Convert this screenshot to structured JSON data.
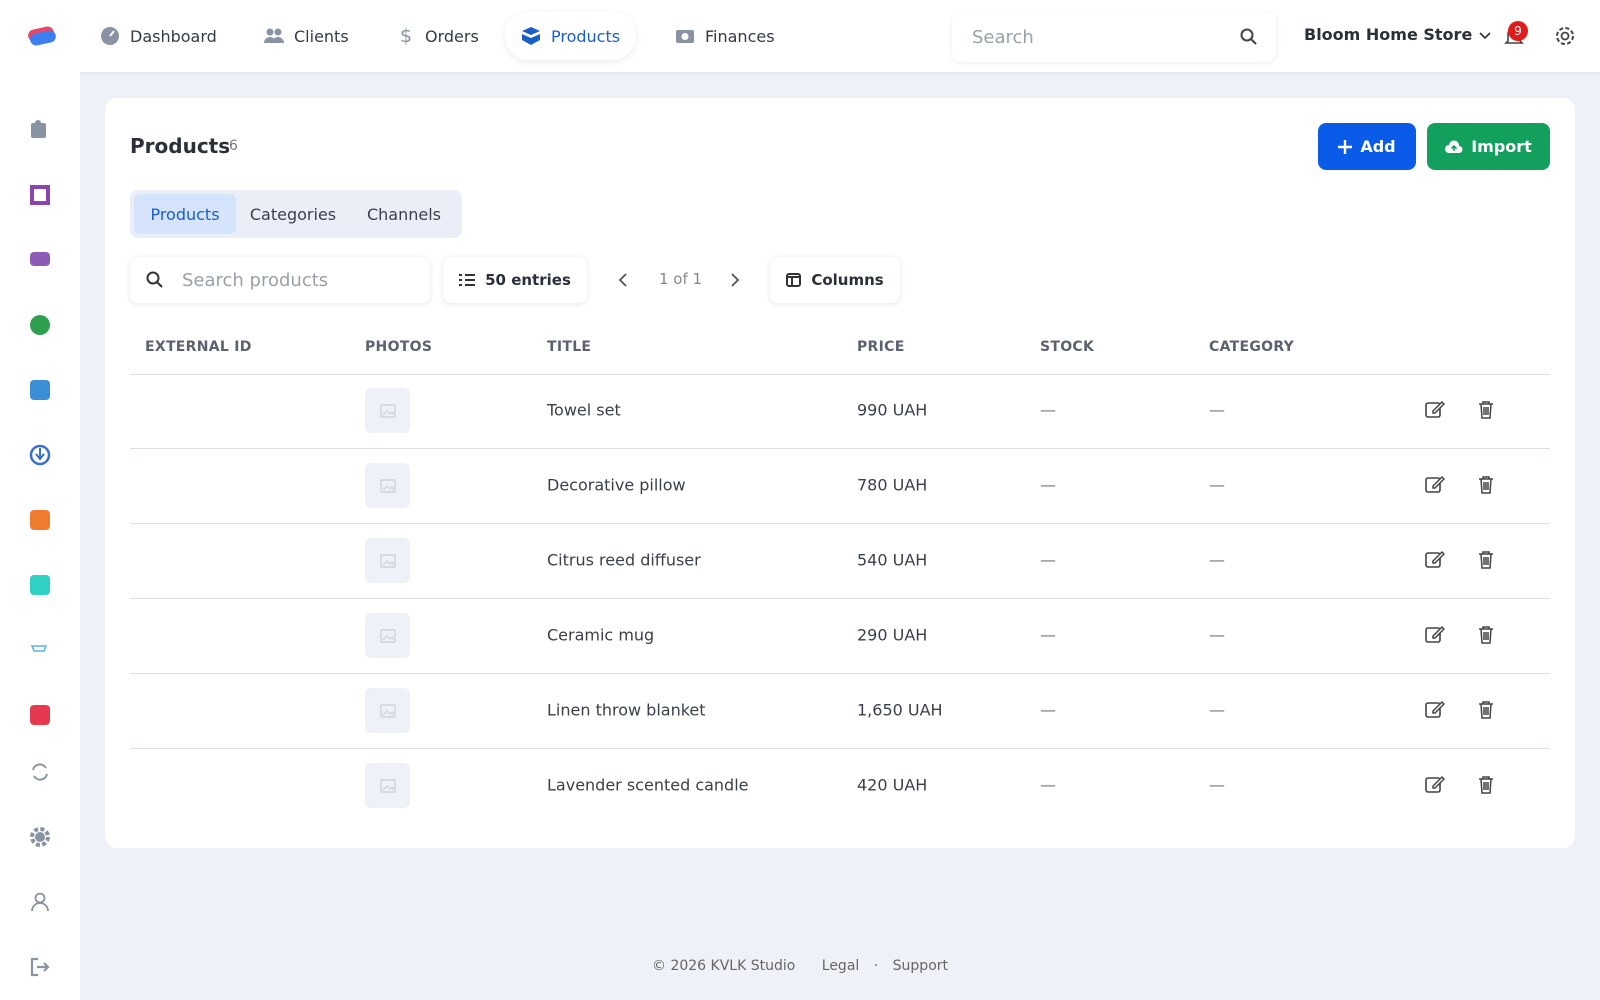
{
  "nav": {
    "items": [
      "Dashboard",
      "Clients",
      "Orders",
      "Products",
      "Finances"
    ],
    "active": 3
  },
  "header": {
    "search_placeholder": "Search",
    "store": "Bloom Home Store",
    "notifications": 9
  },
  "page": {
    "title": "Products",
    "count": 6,
    "buttons": {
      "add": "Add",
      "import": "Import"
    },
    "tabs": [
      "Products",
      "Categories",
      "Channels"
    ],
    "active_tab": 0,
    "search_placeholder": "Search products",
    "entries": "50 entries",
    "pagination": "1 of 1",
    "columns_button": "Columns"
  },
  "table": {
    "headers": [
      "EXTERNAL ID",
      "PHOTOS",
      "TITLE",
      "PRICE",
      "STOCK",
      "CATEGORY"
    ],
    "rows": [
      {
        "title": "Towel set",
        "price": "990 UAH",
        "stock": "—",
        "category": "—"
      },
      {
        "title": "Decorative pillow",
        "price": "780 UAH",
        "stock": "—",
        "category": "—"
      },
      {
        "title": "Citrus reed diffuser",
        "price": "540 UAH",
        "stock": "—",
        "category": "—"
      },
      {
        "title": "Ceramic mug",
        "price": "290 UAH",
        "stock": "—",
        "category": "—"
      },
      {
        "title": "Linen throw blanket",
        "price": "1,650 UAH",
        "stock": "—",
        "category": "—"
      },
      {
        "title": "Lavender scented candle",
        "price": "420 UAH",
        "stock": "—",
        "category": "—"
      }
    ]
  },
  "footer": {
    "copyright": "© 2026 KVLK Studio",
    "links": [
      "Legal",
      "Support"
    ],
    "separator": "·"
  }
}
